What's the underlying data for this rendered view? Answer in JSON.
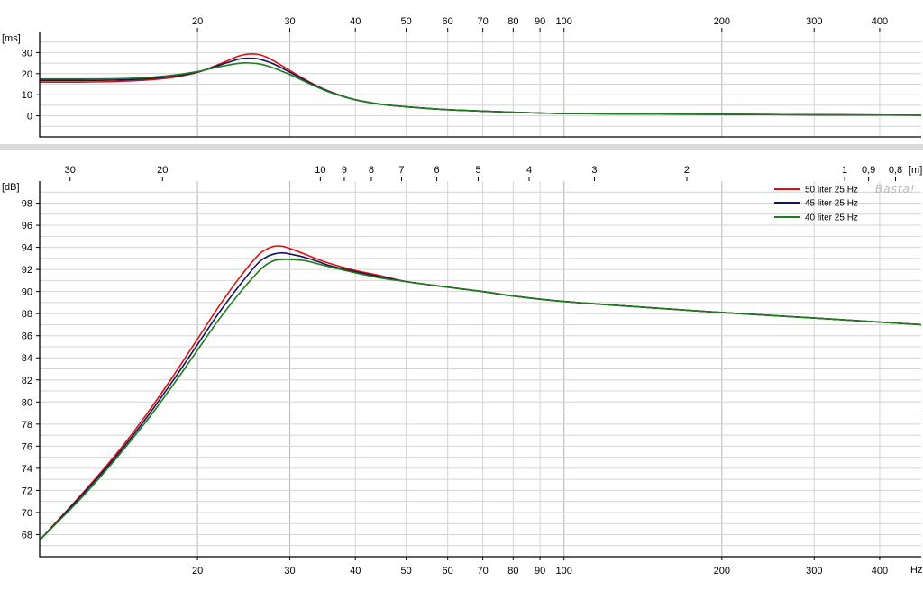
{
  "watermark": "Basta!",
  "colors": {
    "red": "#e01010",
    "navy": "#14145e",
    "green": "#1e7d1e"
  },
  "chart_data": [
    {
      "type": "line",
      "title": "",
      "ylabel": "[ms]",
      "xlabel": "",
      "xscale": "log",
      "xlim": [
        10,
        480
      ],
      "ylim": [
        -10,
        40
      ],
      "x_ticks": [
        {
          "v": 20,
          "label": "20"
        },
        {
          "v": 30,
          "label": "30"
        },
        {
          "v": 40,
          "label": "40"
        },
        {
          "v": 50,
          "label": "50"
        },
        {
          "v": 60,
          "label": "60"
        },
        {
          "v": 70,
          "label": "70"
        },
        {
          "v": 80,
          "label": "80"
        },
        {
          "v": 90,
          "label": "90"
        },
        {
          "v": 100,
          "label": "100"
        },
        {
          "v": 200,
          "label": "200"
        },
        {
          "v": 300,
          "label": "300"
        },
        {
          "v": 400,
          "label": "400"
        }
      ],
      "y_ticks": [
        {
          "v": 0,
          "label": "0"
        },
        {
          "v": 10,
          "label": "10"
        },
        {
          "v": 20,
          "label": "20"
        },
        {
          "v": 30,
          "label": "30"
        }
      ],
      "series": [
        {
          "color": "red",
          "x": [
            10,
            12,
            14,
            16,
            18,
            20,
            22,
            24,
            25,
            26,
            27,
            28,
            30,
            33,
            36,
            40,
            45,
            50,
            60,
            80,
            100,
            150,
            200,
            300,
            480
          ],
          "y": [
            16,
            16,
            16.3,
            17,
            18.3,
            20.6,
            24.5,
            28.4,
            29.3,
            29.2,
            28,
            26,
            21.5,
            15.5,
            11.2,
            7.6,
            5.4,
            4.3,
            2.9,
            1.7,
            1.1,
            0.8,
            0.7,
            0.5,
            0.3
          ]
        },
        {
          "color": "navy",
          "x": [
            10,
            12,
            14,
            16,
            18,
            20,
            22,
            24,
            25,
            26,
            27,
            28,
            30,
            33,
            36,
            40,
            45,
            50,
            60,
            80,
            100,
            150,
            200,
            300,
            480
          ],
          "y": [
            16.8,
            16.8,
            17,
            17.6,
            18.8,
            20.8,
            24,
            26.9,
            27.3,
            27.1,
            26,
            24.5,
            20.7,
            15.2,
            11.1,
            7.6,
            5.4,
            4.3,
            2.9,
            1.7,
            1.1,
            0.8,
            0.7,
            0.5,
            0.3
          ]
        },
        {
          "color": "green",
          "x": [
            10,
            12,
            14,
            16,
            18,
            20,
            22,
            24,
            25,
            26,
            27,
            28,
            30,
            33,
            36,
            40,
            45,
            50,
            60,
            80,
            100,
            150,
            200,
            300,
            480
          ],
          "y": [
            17.5,
            17.5,
            17.6,
            18.1,
            19.3,
            21,
            23.3,
            24.9,
            25.1,
            24.8,
            23.9,
            22.6,
            19.6,
            14.8,
            10.9,
            7.6,
            5.4,
            4.3,
            2.9,
            1.7,
            1.1,
            0.8,
            0.7,
            0.5,
            0.3
          ]
        }
      ]
    },
    {
      "type": "line",
      "title": "",
      "ylabel": "[dB]",
      "xlabel": "Hz",
      "xscale": "log",
      "xlim": [
        10,
        480
      ],
      "ylim": [
        66,
        100
      ],
      "x_ticks": [
        {
          "v": 20,
          "label": "20"
        },
        {
          "v": 30,
          "label": "30"
        },
        {
          "v": 40,
          "label": "40"
        },
        {
          "v": 50,
          "label": "50"
        },
        {
          "v": 60,
          "label": "60"
        },
        {
          "v": 70,
          "label": "70"
        },
        {
          "v": 80,
          "label": "80"
        },
        {
          "v": 90,
          "label": "90"
        },
        {
          "v": 100,
          "label": "100"
        },
        {
          "v": 200,
          "label": "200"
        },
        {
          "v": 300,
          "label": "300"
        },
        {
          "v": 400,
          "label": "400"
        }
      ],
      "y_ticks": [
        {
          "v": 68,
          "label": "68"
        },
        {
          "v": 70,
          "label": "70"
        },
        {
          "v": 72,
          "label": "72"
        },
        {
          "v": 74,
          "label": "74"
        },
        {
          "v": 76,
          "label": "76"
        },
        {
          "v": 78,
          "label": "78"
        },
        {
          "v": 80,
          "label": "80"
        },
        {
          "v": 82,
          "label": "82"
        },
        {
          "v": 84,
          "label": "84"
        },
        {
          "v": 86,
          "label": "86"
        },
        {
          "v": 88,
          "label": "88"
        },
        {
          "v": 90,
          "label": "90"
        },
        {
          "v": 92,
          "label": "92"
        },
        {
          "v": 94,
          "label": "94"
        },
        {
          "v": 96,
          "label": "96"
        },
        {
          "v": 98,
          "label": "98"
        }
      ],
      "top_axis_label": "[m]",
      "top_ticks": [
        {
          "v": 11.43,
          "label": "30"
        },
        {
          "v": 17.15,
          "label": "20"
        },
        {
          "v": 34.3,
          "label": "10"
        },
        {
          "v": 38.1,
          "label": "9"
        },
        {
          "v": 42.9,
          "label": "8"
        },
        {
          "v": 49,
          "label": "7"
        },
        {
          "v": 57.2,
          "label": "6"
        },
        {
          "v": 68.6,
          "label": "5"
        },
        {
          "v": 85.8,
          "label": "4"
        },
        {
          "v": 114.3,
          "label": "3"
        },
        {
          "v": 171.5,
          "label": "2"
        },
        {
          "v": 343,
          "label": "1"
        },
        {
          "v": 381,
          "label": "0,9"
        },
        {
          "v": 428.8,
          "label": "0,8"
        }
      ],
      "legend": {
        "placement": "top-right",
        "entries": [
          {
            "label": "50 liter 25 Hz",
            "color": "red"
          },
          {
            "label": "45 liter 25 Hz",
            "color": "navy"
          },
          {
            "label": "40 liter 25 Hz",
            "color": "green"
          }
        ]
      },
      "series": [
        {
          "name": "50 liter 25 Hz",
          "color": "red",
          "x": [
            10,
            12,
            14,
            16,
            18,
            20,
            22,
            24,
            26,
            27,
            28,
            29,
            30,
            32,
            34,
            36,
            40,
            45,
            50,
            60,
            70,
            80,
            100,
            150,
            200,
            300,
            480
          ],
          "y": [
            67.5,
            71.6,
            75.3,
            78.9,
            82.4,
            85.7,
            88.7,
            91.2,
            93.2,
            93.8,
            94.1,
            94.1,
            93.9,
            93.4,
            92.9,
            92.5,
            91.9,
            91.4,
            90.9,
            90.4,
            90,
            89.6,
            89.1,
            88.5,
            88.1,
            87.6,
            87
          ]
        },
        {
          "name": "45 liter 25 Hz",
          "color": "navy",
          "x": [
            10,
            12,
            14,
            16,
            18,
            20,
            22,
            24,
            26,
            27,
            28,
            29,
            30,
            32,
            34,
            36,
            40,
            45,
            50,
            60,
            70,
            80,
            100,
            150,
            200,
            300,
            480
          ],
          "y": [
            67.5,
            71.5,
            75.1,
            78.6,
            82,
            85.2,
            88.1,
            90.5,
            92.5,
            93.1,
            93.4,
            93.5,
            93.4,
            93.1,
            92.7,
            92.3,
            91.8,
            91.3,
            90.9,
            90.4,
            90,
            89.6,
            89.1,
            88.5,
            88.1,
            87.6,
            87
          ]
        },
        {
          "name": "40 liter 25 Hz",
          "color": "green",
          "x": [
            10,
            12,
            14,
            16,
            18,
            20,
            22,
            24,
            26,
            27,
            28,
            29,
            30,
            32,
            34,
            36,
            40,
            45,
            50,
            60,
            70,
            80,
            100,
            150,
            200,
            300,
            480
          ],
          "y": [
            67.5,
            71.3,
            74.9,
            78.3,
            81.6,
            84.7,
            87.5,
            89.8,
            91.7,
            92.4,
            92.8,
            92.9,
            92.9,
            92.8,
            92.5,
            92.2,
            91.7,
            91.2,
            90.9,
            90.4,
            90,
            89.6,
            89.1,
            88.5,
            88.1,
            87.6,
            87
          ]
        }
      ]
    }
  ]
}
